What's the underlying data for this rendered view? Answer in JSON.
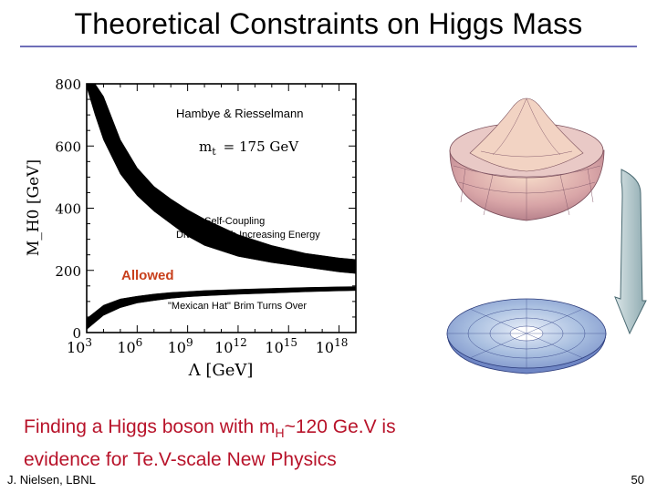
{
  "slide": {
    "title": "Theoretical Constraints on Higgs Mass",
    "conclusion_line1_pre": "Finding a Higgs boson with m",
    "conclusion_sub": "H",
    "conclusion_line1_post": "~120 Ge.V is",
    "conclusion_line2": "evidence for Te.V-scale New Physics",
    "author": "J. Nielsen, LBNL",
    "page_number": "50"
  },
  "colors": {
    "band": "#000000",
    "allowed_label": "#c8401c",
    "conclusion_text": "#b8132a",
    "title_rule": "#6e6eb8",
    "arrow_fill": "#a8c0c4"
  },
  "icons": {
    "top_surface": "mexican-hat-potential-icon",
    "bottom_surface": "flat-bowl-potential-icon",
    "arrow": "curved-down-arrow-icon"
  },
  "chart_data": {
    "type": "area",
    "x_scale": "log",
    "xlim_exponent": [
      3,
      19
    ],
    "ylim": [
      0,
      800
    ],
    "xlabel": "Λ [GeV]",
    "ylabel": "M_H0 [GeV]",
    "x_ticks": [
      "10^3",
      "10^6",
      "10^9",
      "10^12",
      "10^15",
      "10^18"
    ],
    "x_tick_exponents": [
      3,
      6,
      9,
      12,
      15,
      18
    ],
    "y_ticks": [
      0,
      200,
      400,
      600,
      800
    ],
    "series": [
      {
        "log10_lambda": [
          3,
          3.5,
          4,
          5,
          6,
          7,
          8,
          9,
          10,
          12,
          14,
          16,
          18,
          19
        ],
        "upper_low": [
          790,
          700,
          620,
          510,
          440,
          390,
          350,
          310,
          280,
          245,
          225,
          210,
          195,
          190
        ],
        "upper_high": [
          800,
          800,
          760,
          620,
          530,
          470,
          430,
          395,
          365,
          315,
          280,
          255,
          240,
          235
        ]
      },
      {
        "log10_lambda": [
          3,
          4,
          5,
          6,
          7,
          8,
          9,
          10,
          12,
          14,
          16,
          18,
          19
        ],
        "lower_low": [
          10,
          55,
          80,
          95,
          103,
          110,
          115,
          118,
          123,
          127,
          131,
          134,
          135
        ],
        "lower_high": [
          45,
          88,
          108,
          117,
          124,
          129,
          132,
          135,
          139,
          142,
          145,
          147,
          148
        ]
      }
    ],
    "annotations": {
      "source": "Hambye & Riesselmann",
      "mt_label": "m",
      "mt_sub": "t",
      "mt_value": "= 175 GeV",
      "self_coupling_1": "Higgs Self-Coupling",
      "self_coupling_2": "Diverges with Increasing Energy",
      "allowed": "Allowed",
      "mexican_hat": "\"Mexican Hat\" Brim Turns Over"
    }
  }
}
